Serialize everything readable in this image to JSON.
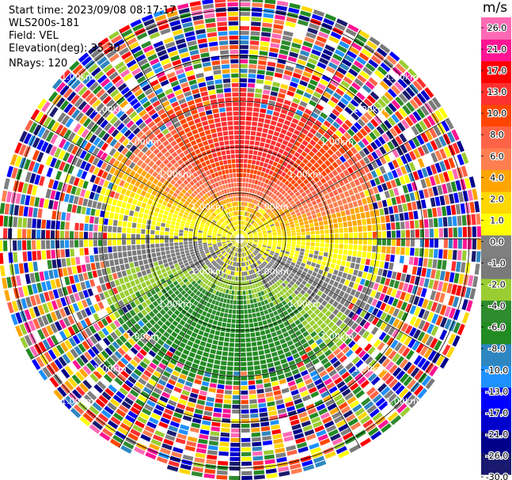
{
  "header": {
    "start_time": "Start time: 2023/09/08 08:17:17",
    "instrument": "WLS200s-181",
    "field": "Field: VEL",
    "elevation": "Elevation(deg): 35.30",
    "nrays": "NRays: 120"
  },
  "range_ring_label": "1.00km",
  "colorbar": {
    "unit": "m/s",
    "colors": [
      "#191970",
      "#00008b",
      "#0000cd",
      "#0000ff",
      "#1e90ff",
      "#2e86c1",
      "#228b22",
      "#2e8b2e",
      "#9acd32",
      "#7a7a7a",
      "#808080",
      "#ffff00",
      "#ffd700",
      "#ffa500",
      "#ff7f50",
      "#ff6347",
      "#ff4500",
      "#ff3030",
      "#ff0000",
      "#ff1493",
      "#ff69b4"
    ],
    "ticks": [
      "26.0",
      "21.0",
      "17.0",
      "13.0",
      "10.0",
      "8.0",
      "6.0",
      "4.0",
      "2.0",
      "1.0",
      "0.0",
      "-1.0",
      "-2.0",
      "-4.0",
      "-6.0",
      "-8.0",
      "-10.0",
      "-13.0",
      "-17.0",
      "-21.0",
      "-26.0",
      "-30.0"
    ]
  },
  "chart_data": {
    "type": "heatmap",
    "projection": "PPI (plan position indicator)",
    "field": "VEL",
    "units": "m/s",
    "nrays": 120,
    "azimuth_step_deg": 3,
    "range_ring_label": "1.00km",
    "color_scale_min": -30.0,
    "color_scale_max": 26.0,
    "pattern": {
      "receding_max_azimuth_deg": 10,
      "receding_peak": 17.0,
      "approaching_max_azimuth_deg": 190,
      "approaching_peak": -13.0,
      "coherent_region_outer_ring": 3.2,
      "noise_region": "outer rings beyond ~3.2 rings show random velocities (noise)"
    }
  }
}
